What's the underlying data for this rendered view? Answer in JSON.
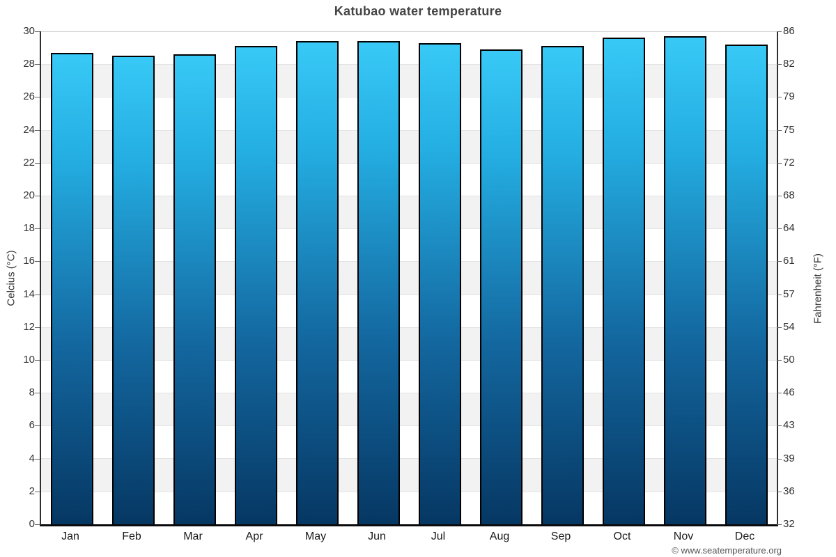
{
  "title": "Katubao water temperature",
  "footer": {
    "credit": "© www.seatemperature.org"
  },
  "axes": {
    "left_label": "Celcius (°C)",
    "right_label": "Fahrenheit (°F)"
  },
  "chart_data": {
    "type": "bar",
    "title": "Katubao water temperature",
    "categories": [
      "Jan",
      "Feb",
      "Mar",
      "Apr",
      "May",
      "Jun",
      "Jul",
      "Aug",
      "Sep",
      "Oct",
      "Nov",
      "Dec"
    ],
    "values": [
      28.7,
      28.5,
      28.6,
      29.1,
      29.4,
      29.4,
      29.3,
      28.9,
      29.1,
      29.6,
      29.7,
      29.2
    ],
    "unit": "°C",
    "xlabel": "",
    "ylabel_left": "Celcius (°C)",
    "ylabel_right": "Fahrenheit (°F)",
    "ylim": [
      0,
      30
    ],
    "left_ticks": [
      30,
      28,
      26,
      24,
      22,
      20,
      18,
      16,
      14,
      12,
      10,
      8,
      6,
      4,
      2,
      0
    ],
    "right_ticks": [
      86,
      82,
      79,
      75,
      72,
      68,
      64,
      61,
      57,
      54,
      50,
      46,
      43,
      39,
      36,
      32
    ],
    "grid": "horizontal alternating bands every 2°C",
    "legend": "none",
    "colors": {
      "bar_gradient_top": "#38c9f6",
      "bar_gradient_upper_mid": "#24aee2",
      "bar_gradient_lower_mid": "#13679f",
      "bar_gradient_bottom": "#063763",
      "bar_border": "#000000",
      "band_white": "#ffffff",
      "band_gray": "#f2f2f2",
      "grid_line": "#e3e3e3",
      "top_grid_line": "#cfcfcf",
      "axis_line": "#2f2f2f",
      "baseline": "#0a0a0a",
      "title_color": "#444444",
      "tick_label_color": "#333333",
      "month_label_color": "#1a1a1a",
      "tick_mark_color": "#666666",
      "footer_color": "#555555"
    }
  }
}
